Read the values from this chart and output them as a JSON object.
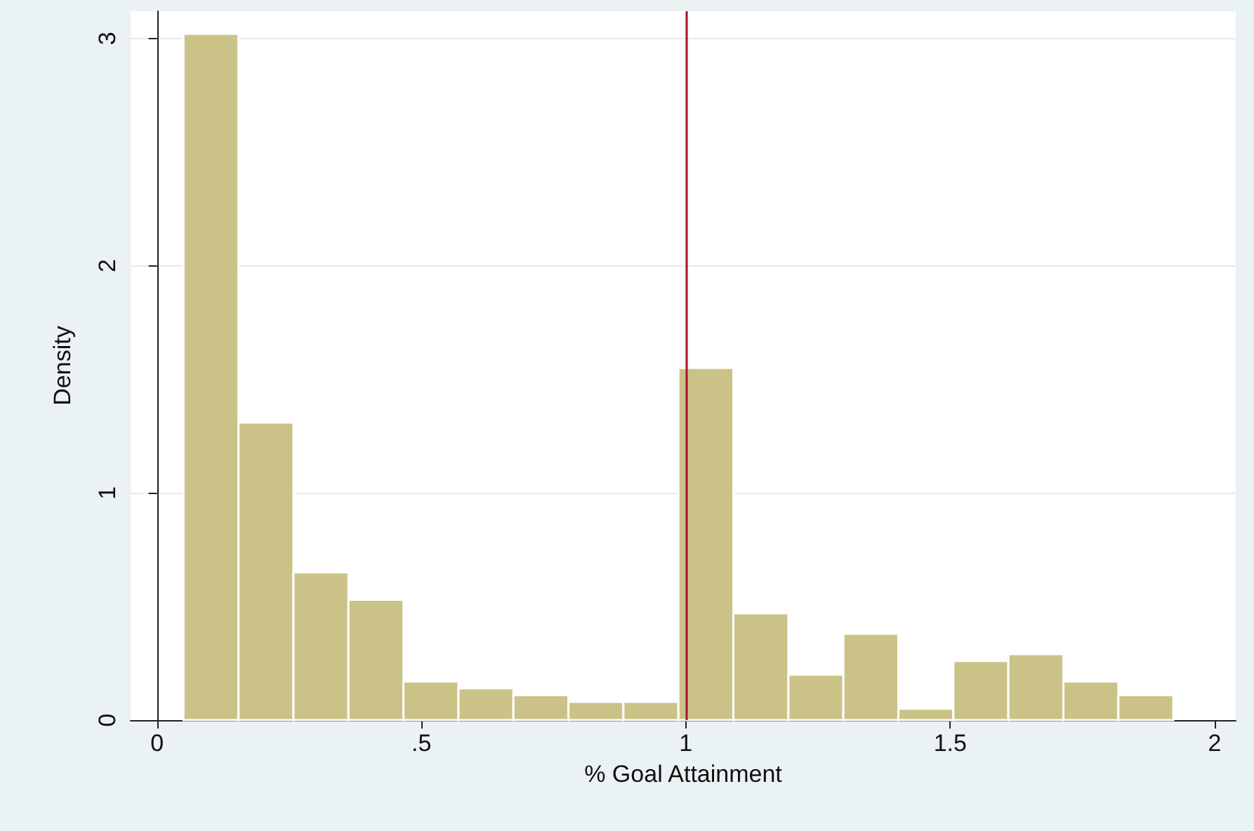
{
  "chart_data": {
    "type": "histogram",
    "xlabel": "% Goal Attainment",
    "ylabel": "Density",
    "bins": [
      0.05,
      0.154,
      0.258,
      0.362,
      0.466,
      0.57,
      0.674,
      0.778,
      0.882,
      0.986,
      1.09,
      1.194,
      1.298,
      1.402,
      1.506,
      1.61,
      1.714,
      1.818,
      1.922
    ],
    "values": [
      3.02,
      1.31,
      0.65,
      0.53,
      0.17,
      0.14,
      0.11,
      0.08,
      0.08,
      1.55,
      0.47,
      0.2,
      0.38,
      0.05,
      0.26,
      0.29,
      0.17,
      0.11
    ],
    "color": "#cbc287",
    "xlim": [
      -0.05,
      2.04
    ],
    "xticks": [
      {
        "value": 0,
        "label": "0"
      },
      {
        "value": 0.5,
        "label": ".5"
      },
      {
        "value": 1,
        "label": "1"
      },
      {
        "value": 1.5,
        "label": "1.5"
      },
      {
        "value": 2,
        "label": "2"
      }
    ],
    "ylim": [
      0,
      3.12
    ],
    "yticks": [
      0,
      1,
      2,
      3
    ],
    "grid": "y",
    "ref_lines": [
      {
        "axis": "x",
        "value": 1,
        "color": "#a8102e"
      }
    ]
  }
}
